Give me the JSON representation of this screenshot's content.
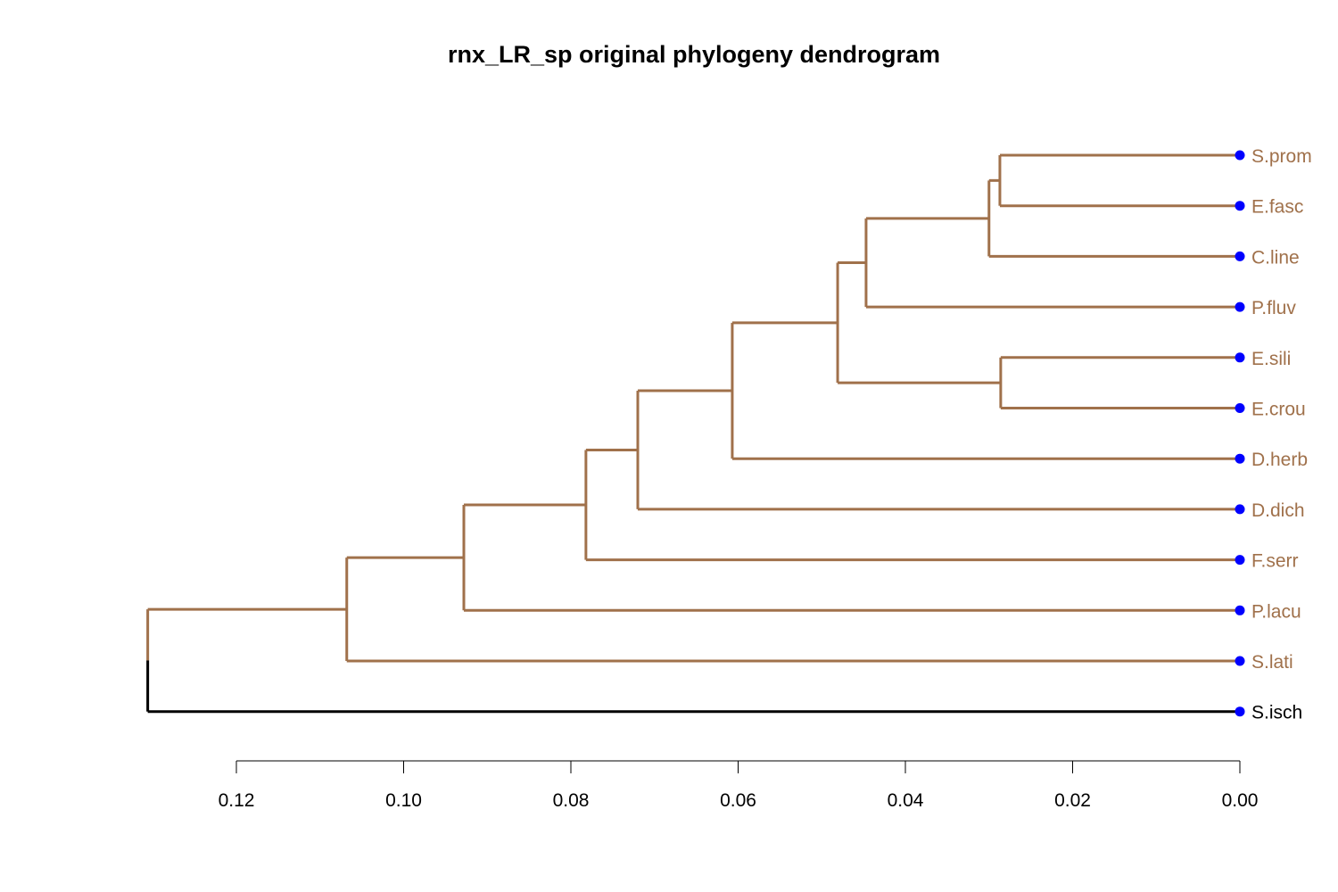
{
  "chart_data": {
    "type": "dendrogram",
    "title": "rnx_LR_sp original phylogeny dendrogram",
    "orientation": "leaves-right",
    "x_axis": {
      "reversed": true,
      "ticks": [
        "0.12",
        "0.10",
        "0.08",
        "0.06",
        "0.04",
        "0.02",
        "0.00"
      ],
      "tick_values": [
        0.12,
        0.1,
        0.08,
        0.06,
        0.04,
        0.02,
        0.0
      ]
    },
    "leaves": [
      {
        "label": "S.prom",
        "color": "#A0714B"
      },
      {
        "label": "E.fasc",
        "color": "#A0714B"
      },
      {
        "label": "C.line",
        "color": "#A0714B"
      },
      {
        "label": "P.fluv",
        "color": "#A0714B"
      },
      {
        "label": "E.sili",
        "color": "#A0714B"
      },
      {
        "label": "E.crou",
        "color": "#A0714B"
      },
      {
        "label": "D.herb",
        "color": "#A0714B"
      },
      {
        "label": "D.dich",
        "color": "#A0714B"
      },
      {
        "label": "F.serr",
        "color": "#A0714B"
      },
      {
        "label": "P.lacu",
        "color": "#A0714B"
      },
      {
        "label": "S.lati",
        "color": "#A0714B"
      },
      {
        "label": "S.isch",
        "color": "#000000"
      }
    ],
    "merges": [
      {
        "id": "n1",
        "children": [
          "S.prom",
          "E.fasc"
        ],
        "height": 0.0287
      },
      {
        "id": "n2",
        "children": [
          "n1",
          "C.line"
        ],
        "height": 0.03
      },
      {
        "id": "n3",
        "children": [
          "n2",
          "P.fluv"
        ],
        "height": 0.0447
      },
      {
        "id": "n4",
        "children": [
          "E.sili",
          "E.crou"
        ],
        "height": 0.0286
      },
      {
        "id": "n5",
        "children": [
          "n3",
          "n4"
        ],
        "height": 0.0481
      },
      {
        "id": "n6",
        "children": [
          "n5",
          "D.herb"
        ],
        "height": 0.0607
      },
      {
        "id": "n7",
        "children": [
          "n6",
          "D.dich"
        ],
        "height": 0.072
      },
      {
        "id": "n8",
        "children": [
          "n7",
          "F.serr"
        ],
        "height": 0.0782
      },
      {
        "id": "n9",
        "children": [
          "n8",
          "P.lacu"
        ],
        "height": 0.0928
      },
      {
        "id": "n10",
        "children": [
          "n9",
          "S.lati"
        ],
        "height": 0.1068
      },
      {
        "id": "root",
        "children": [
          "n10",
          "S.isch"
        ],
        "height": 0.1306
      }
    ],
    "clade_color": "#A0714B",
    "outgroup_color": "#000000",
    "leaf_point_color": "#0000FF"
  }
}
